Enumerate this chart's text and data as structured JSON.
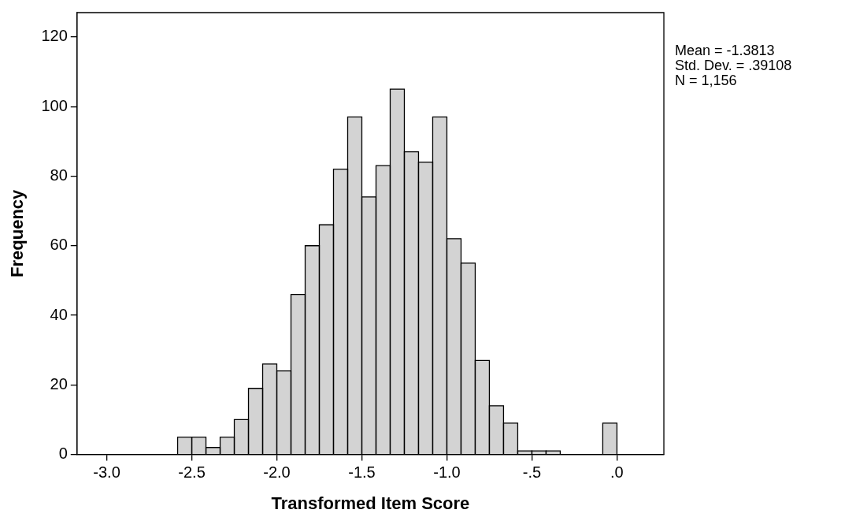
{
  "chart_data": {
    "type": "histogram",
    "xlabel": "Transformed Item Score",
    "ylabel": "Frequency",
    "bins": [
      -2.5833,
      -2.5,
      -2.4167,
      -2.3333,
      -2.25,
      -2.1667,
      -2.0833,
      -2.0,
      -1.9167,
      -1.8333,
      -1.75,
      -1.6667,
      -1.5833,
      -1.5,
      -1.4167,
      -1.3333,
      -1.25,
      -1.1667,
      -1.0833,
      -1.0,
      -0.9167,
      -0.8333,
      -0.75,
      -0.6667,
      -0.5833,
      -0.5,
      -0.4167,
      -0.3333,
      -0.25,
      -0.1667,
      -0.0833,
      0
    ],
    "values": [
      5,
      5,
      2,
      5,
      10,
      19,
      26,
      24,
      46,
      60,
      66,
      82,
      97,
      74,
      83,
      105,
      87,
      84,
      97,
      62,
      55,
      27,
      14,
      9,
      1,
      1,
      1,
      0,
      0,
      0,
      9
    ],
    "color": "#d3d3d3",
    "xlim": [
      -3.175,
      0.276
    ],
    "xticks": [
      {
        "value": -3.0,
        "label": "-3.0"
      },
      {
        "value": -2.5,
        "label": "-2.5"
      },
      {
        "value": -2.0,
        "label": "-2.0"
      },
      {
        "value": -1.5,
        "label": "-1.5"
      },
      {
        "value": -1.0,
        "label": "-1.0"
      },
      {
        "value": -0.5,
        "label": "-.5"
      },
      {
        "value": 0,
        "label": ".0"
      }
    ],
    "ylim": [
      0,
      127
    ],
    "yticks": [
      0,
      20,
      40,
      60,
      80,
      100,
      120
    ],
    "grid": false,
    "legend": false,
    "annotations": [
      "Mean = -1.3813",
      "Std. Dev. = .39108",
      "N = 1,156"
    ]
  }
}
